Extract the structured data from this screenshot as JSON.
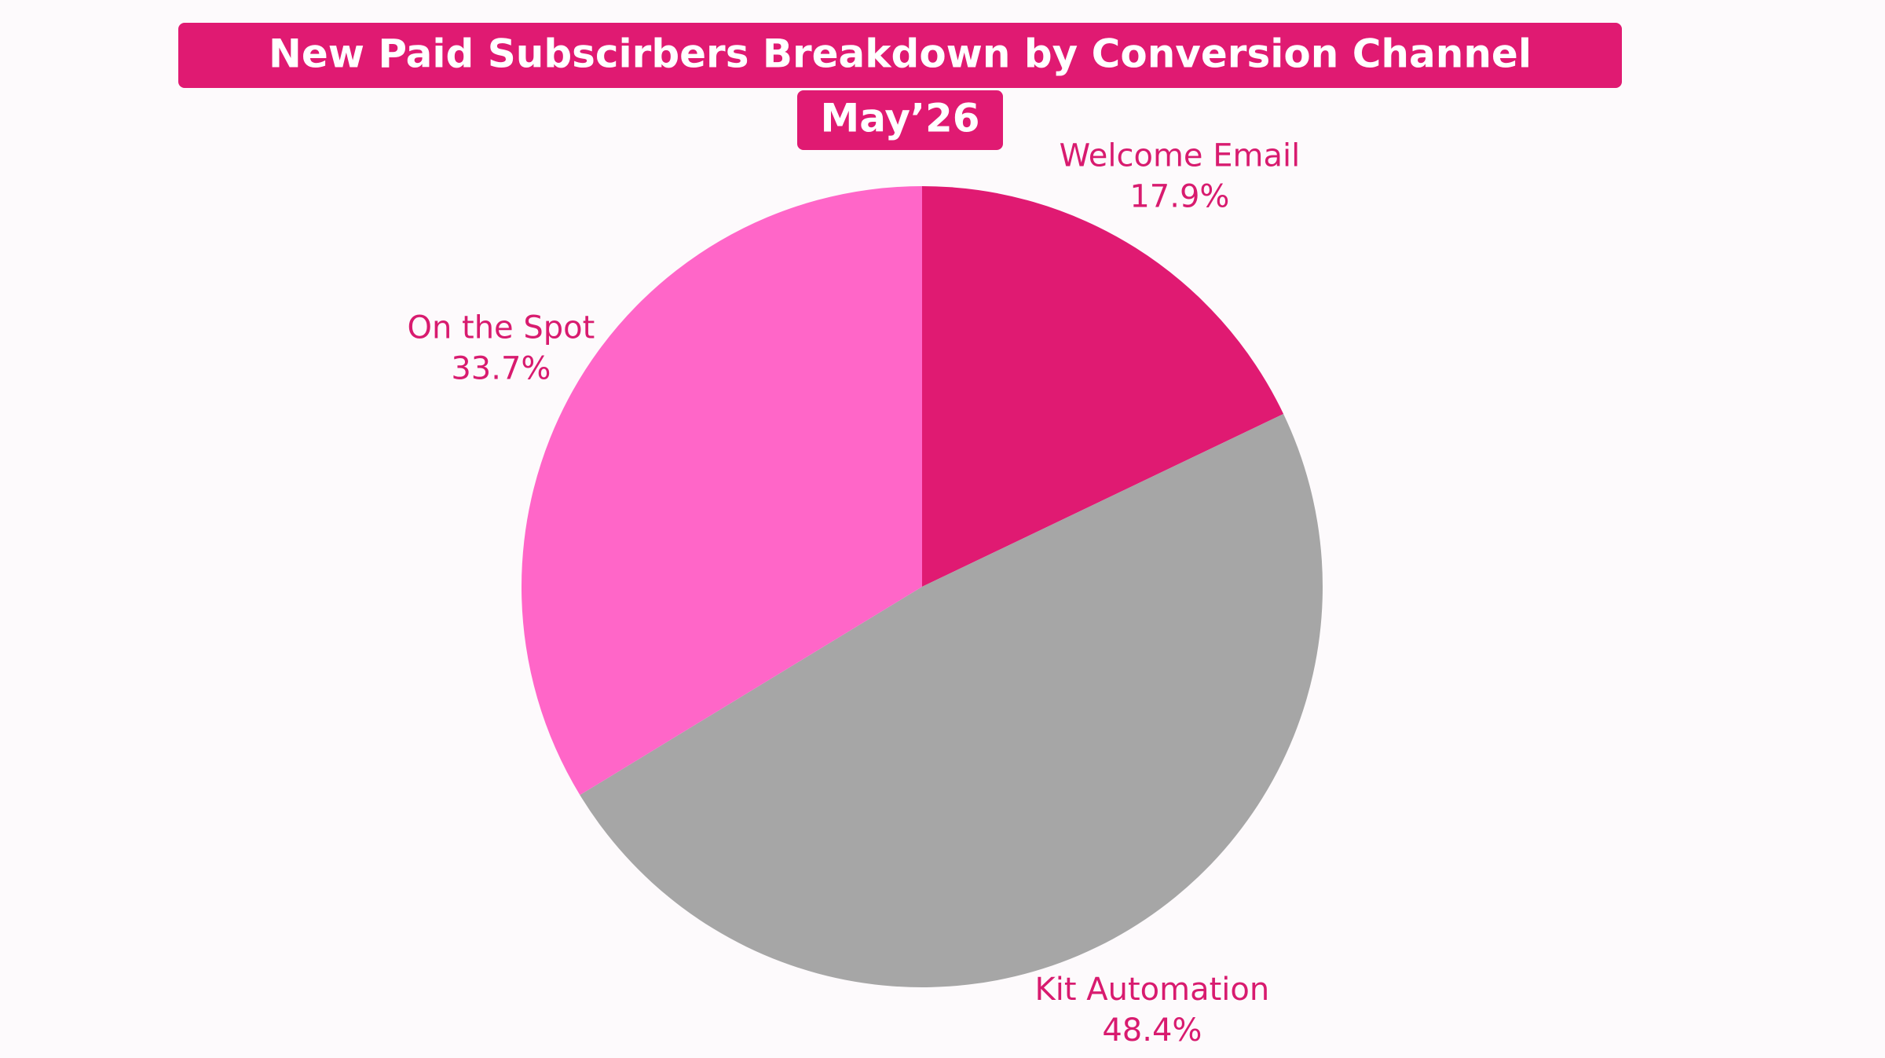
{
  "chart_data": {
    "type": "pie",
    "title": "New Paid Subscirbers Breakdown by Conversion Channel",
    "subtitle": "May’26",
    "categories": [
      "Welcome Email",
      "Kit Automation",
      "On the Spot"
    ],
    "values": [
      17.9,
      48.4,
      33.7
    ],
    "value_labels": [
      "17.9%",
      "48.4%",
      "33.7%"
    ],
    "colors": [
      "#e01a72",
      "#a6a6a6",
      "#ff66c8"
    ]
  }
}
